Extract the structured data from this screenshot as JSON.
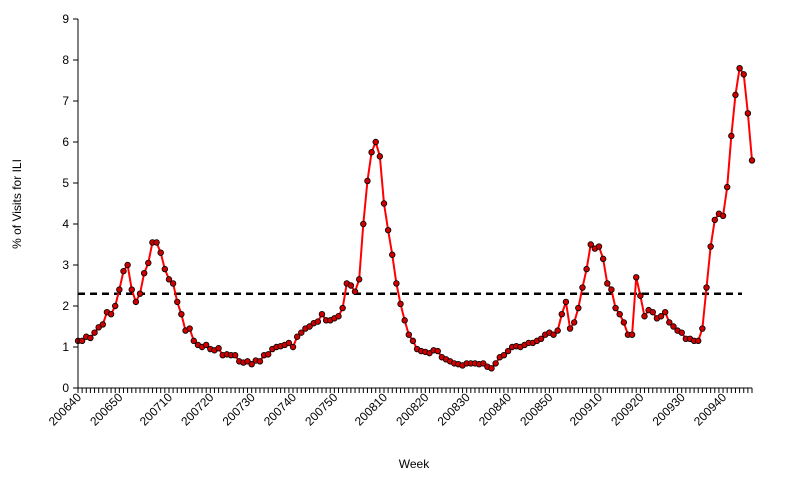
{
  "chart_data": {
    "type": "line",
    "xlabel": "Week",
    "ylabel": "% of Visits for ILI",
    "ylim": [
      0,
      9
    ],
    "y_ticks": [
      "0",
      "1",
      "2",
      "3",
      "4",
      "5",
      "6",
      "7",
      "8",
      "9"
    ],
    "x_tick_labels": [
      "200640",
      "200650",
      "200710",
      "200720",
      "200730",
      "200740",
      "200750",
      "200810",
      "200820",
      "200830",
      "200840",
      "200850",
      "200910",
      "200920",
      "200930",
      "200940"
    ],
    "x_tick_positions": [
      0,
      10,
      22,
      32,
      42,
      52,
      62,
      74,
      84,
      94,
      104,
      114,
      126,
      136,
      146,
      156
    ],
    "grid": false,
    "legend": "none",
    "colors": {
      "line": "#ff0000",
      "marker": "#cc0000",
      "marker_edge": "#000000",
      "baseline": "#000000"
    },
    "baseline": {
      "value": 2.3,
      "style": "dashed"
    },
    "series": [
      {
        "values": [
          1.15,
          1.15,
          1.25,
          1.22,
          1.35,
          1.48,
          1.55,
          1.85,
          1.8,
          2.0,
          2.4,
          2.85,
          3.0,
          2.4,
          2.1,
          2.3,
          2.8,
          3.05,
          3.55,
          3.55,
          3.3,
          2.9,
          2.65,
          2.55,
          2.1,
          1.8,
          1.4,
          1.45,
          1.15,
          1.05,
          1.0,
          1.05,
          0.95,
          0.92,
          0.97,
          0.8,
          0.82,
          0.8,
          0.8,
          0.65,
          0.62,
          0.65,
          0.58,
          0.67,
          0.65,
          0.8,
          0.82,
          0.95,
          1.0,
          1.02,
          1.05,
          1.1,
          1.0,
          1.25,
          1.35,
          1.45,
          1.5,
          1.58,
          1.62,
          1.8,
          1.65,
          1.65,
          1.7,
          1.75,
          1.95,
          2.55,
          2.5,
          2.35,
          2.65,
          4.0,
          5.05,
          5.75,
          6.0,
          5.65,
          4.5,
          3.85,
          3.25,
          2.55,
          2.05,
          1.65,
          1.3,
          1.15,
          0.95,
          0.9,
          0.88,
          0.85,
          0.92,
          0.9,
          0.75,
          0.7,
          0.65,
          0.6,
          0.58,
          0.55,
          0.6,
          0.6,
          0.6,
          0.58,
          0.6,
          0.52,
          0.48,
          0.6,
          0.75,
          0.8,
          0.9,
          1.0,
          1.02,
          1.0,
          1.05,
          1.1,
          1.1,
          1.15,
          1.2,
          1.3,
          1.35,
          1.3,
          1.4,
          1.8,
          2.1,
          1.45,
          1.6,
          1.95,
          2.45,
          2.9,
          3.5,
          3.4,
          3.45,
          3.15,
          2.55,
          2.4,
          1.95,
          1.8,
          1.6,
          1.3,
          1.3,
          2.7,
          2.25,
          1.75,
          1.9,
          1.85,
          1.7,
          1.75,
          1.85,
          1.6,
          1.5,
          1.4,
          1.35,
          1.2,
          1.2,
          1.15,
          1.15,
          1.45,
          2.45,
          3.45,
          4.1,
          4.25,
          4.2,
          4.9,
          6.15,
          7.15,
          7.8,
          7.65,
          6.7,
          5.55
        ]
      }
    ]
  }
}
